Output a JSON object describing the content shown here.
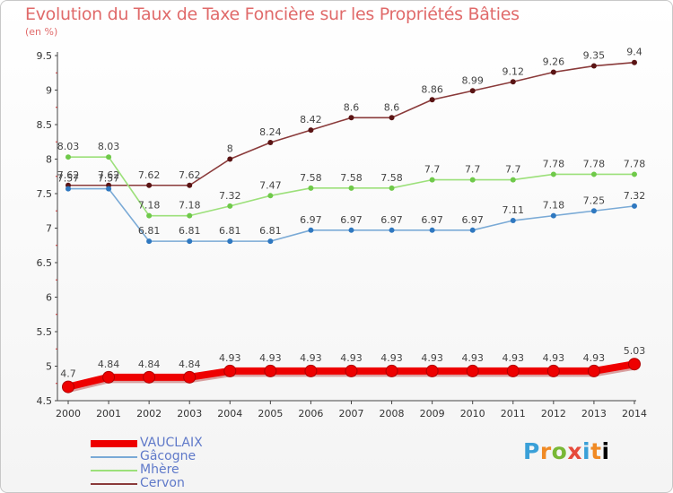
{
  "title": "Evolution du Taux de Taxe Foncière sur les Propriétés Bâties",
  "unit_label": "(en %)",
  "logo_letters": [
    "P",
    "r",
    "o",
    "x",
    "i",
    "t",
    "i"
  ],
  "chart_data": {
    "type": "line",
    "title": "Evolution du Taux de Taxe Foncière sur les Propriétés Bâties",
    "ylabel": "(en %)",
    "xlabel": "",
    "ylim": [
      4.5,
      9.5
    ],
    "yticks": [
      "4.5",
      "5",
      "5.5",
      "6",
      "6.5",
      "7",
      "7.5",
      "8",
      "8.5",
      "9",
      "9.5"
    ],
    "grid": false,
    "legend_position": "bottom-left",
    "categories": [
      "2000",
      "2001",
      "2002",
      "2003",
      "2004",
      "2005",
      "2006",
      "2007",
      "2008",
      "2009",
      "2010",
      "2011",
      "2012",
      "2013",
      "2014"
    ],
    "series": [
      {
        "name": "VAUCLAIX",
        "color": "#ee0000",
        "marker_color": "#ee0000",
        "bold": true,
        "values": [
          4.7,
          4.84,
          4.84,
          4.84,
          4.93,
          4.93,
          4.93,
          4.93,
          4.93,
          4.93,
          4.93,
          4.93,
          4.93,
          4.93,
          5.03
        ],
        "labels": [
          "4.7",
          "4.84",
          "4.84",
          "4.84",
          "4.93",
          "4.93",
          "4.93",
          "4.93",
          "4.93",
          "4.93",
          "4.93",
          "4.93",
          "4.93",
          "4.93",
          "5.03"
        ]
      },
      {
        "name": "Gâcogne",
        "color": "#7aaad6",
        "marker_color": "#2f78c0",
        "bold": false,
        "values": [
          7.57,
          7.57,
          6.81,
          6.81,
          6.81,
          6.81,
          6.97,
          6.97,
          6.97,
          6.97,
          6.97,
          7.11,
          7.18,
          7.25,
          7.32
        ],
        "labels": [
          "7.57",
          "7.57",
          "6.81",
          "6.81",
          "6.81",
          "6.81",
          "6.97",
          "6.97",
          "6.97",
          "6.97",
          "6.97",
          "7.11",
          "7.18",
          "7.25",
          "7.32"
        ]
      },
      {
        "name": "Mhère",
        "color": "#9ce07a",
        "marker_color": "#6fc94a",
        "bold": false,
        "values": [
          8.03,
          8.03,
          7.18,
          7.18,
          7.32,
          7.47,
          7.58,
          7.58,
          7.58,
          7.7,
          7.7,
          7.7,
          7.78,
          7.78,
          7.78
        ],
        "labels": [
          "8.03",
          "8.03",
          "7.18",
          "7.18",
          "7.32",
          "7.47",
          "7.58",
          "7.58",
          "7.58",
          "7.7",
          "7.7",
          "7.7",
          "7.78",
          "7.78",
          "7.78"
        ]
      },
      {
        "name": "Cervon",
        "color": "#8a3a3a",
        "marker_color": "#5a1414",
        "bold": false,
        "values": [
          7.62,
          7.62,
          7.62,
          7.62,
          8.0,
          8.24,
          8.42,
          8.6,
          8.6,
          8.86,
          8.99,
          9.12,
          9.26,
          9.35,
          9.4
        ],
        "labels": [
          "7.62",
          "7.62",
          "7.62",
          "7.62",
          "8",
          "8.24",
          "8.42",
          "8.6",
          "8.6",
          "8.86",
          "8.99",
          "9.12",
          "9.26",
          "9.35",
          "9.4"
        ]
      }
    ]
  }
}
